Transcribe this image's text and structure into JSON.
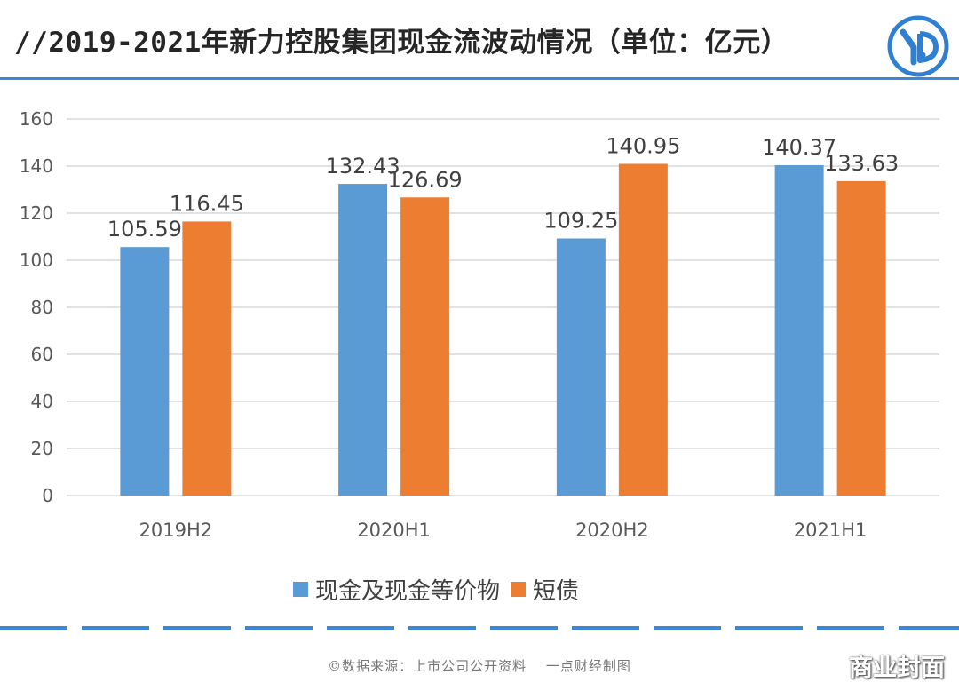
{
  "header": {
    "title": "//2019-2021年新力控股集团现金流波动情况（单位：亿元）",
    "logo_icon": "yd-logo-icon"
  },
  "chart_data": {
    "type": "bar",
    "categories": [
      "2019H2",
      "2020H1",
      "2020H2",
      "2021H1"
    ],
    "series": [
      {
        "name": "现金及现金等价物",
        "values": [
          105.59,
          132.43,
          109.25,
          140.37
        ],
        "labels": [
          "105.59",
          "132.43",
          "109.25",
          "140.37"
        ],
        "color": "#5b9bd5"
      },
      {
        "name": "短债",
        "values": [
          116.45,
          126.69,
          140.95,
          133.63
        ],
        "labels": [
          "116.45",
          "126.69",
          "140.95",
          "133.63"
        ],
        "color": "#ed7d31"
      }
    ],
    "ylim": [
      0,
      160
    ],
    "yticks": [
      0,
      20,
      40,
      60,
      80,
      100,
      120,
      140,
      160
    ],
    "grid": true,
    "legend": "bottom"
  },
  "footer": {
    "source": "©数据来源：上市公司公开资料　 一点财经制图",
    "watermark": "商业封面"
  },
  "colors": {
    "accent": "#3d86d6",
    "series_1": "#5b9bd5",
    "series_2": "#ed7d31"
  }
}
